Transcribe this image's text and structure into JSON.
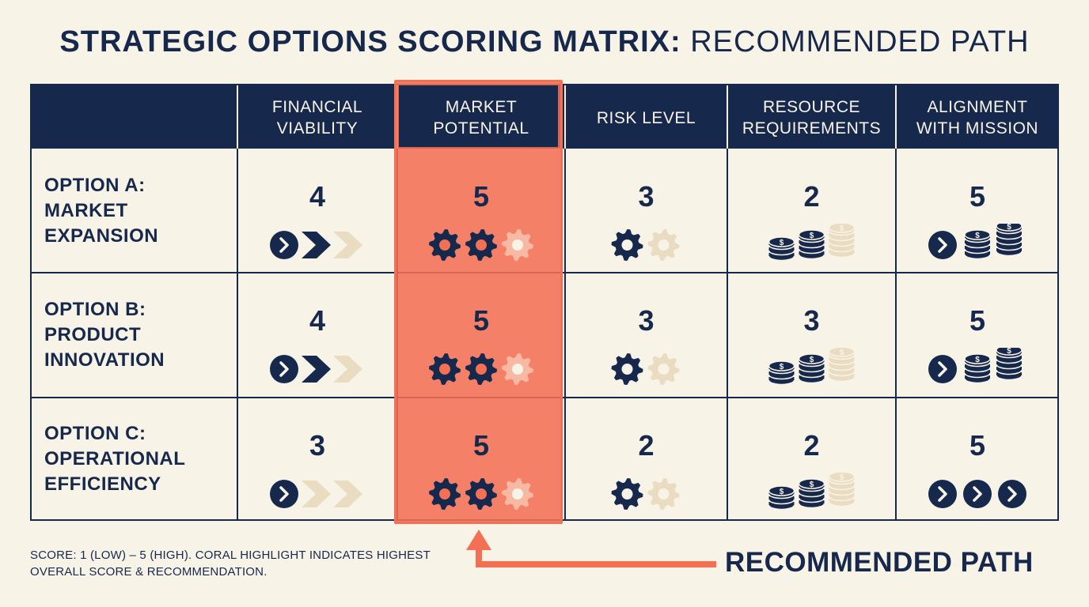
{
  "title": {
    "bold": "STRATEGIC OPTIONS SCORING MATRIX:",
    "light": "RECOMMENDED PATH"
  },
  "columns": [
    {
      "label": "FINANCIAL\nVIABILITY",
      "icon": "chevron-arrow-icon"
    },
    {
      "label": "MARKET\nPOTENTIAL",
      "icon": "gear-icon",
      "highlighted": true
    },
    {
      "label": "RISK LEVEL",
      "icon": "gear-icon"
    },
    {
      "label": "RESOURCE\nREQUIREMENTS",
      "icon": "coin-stack-icon"
    },
    {
      "label": "ALIGNMENT\nWITH MISSION",
      "icon": "chevron-circle-coin-icon"
    }
  ],
  "rows": [
    {
      "label": "OPTION A:\nMARKET\nEXPANSION",
      "scores": [
        "4",
        "5",
        "3",
        "2",
        "5"
      ]
    },
    {
      "label": "OPTION B:\nPRODUCT\nINNOVATION",
      "scores": [
        "4",
        "5",
        "3",
        "3",
        "5"
      ]
    },
    {
      "label": "OPTION C:\nOPERATIONAL\nEFFICIENCY",
      "scores": [
        "3",
        "5",
        "2",
        "2",
        "5"
      ]
    }
  ],
  "footnote": "SCORE: 1 (LOW) – 5 (HIGH). CORAL HIGHLIGHT INDICATES HIGHEST OVERALL SCORE & RECOMMENDATION.",
  "recommended_label": "RECOMMENDED PATH",
  "colors": {
    "navy": "#17284d",
    "cream": "#f8f3e7",
    "coral": "#f37055",
    "faded": "#e9dcc0"
  }
}
